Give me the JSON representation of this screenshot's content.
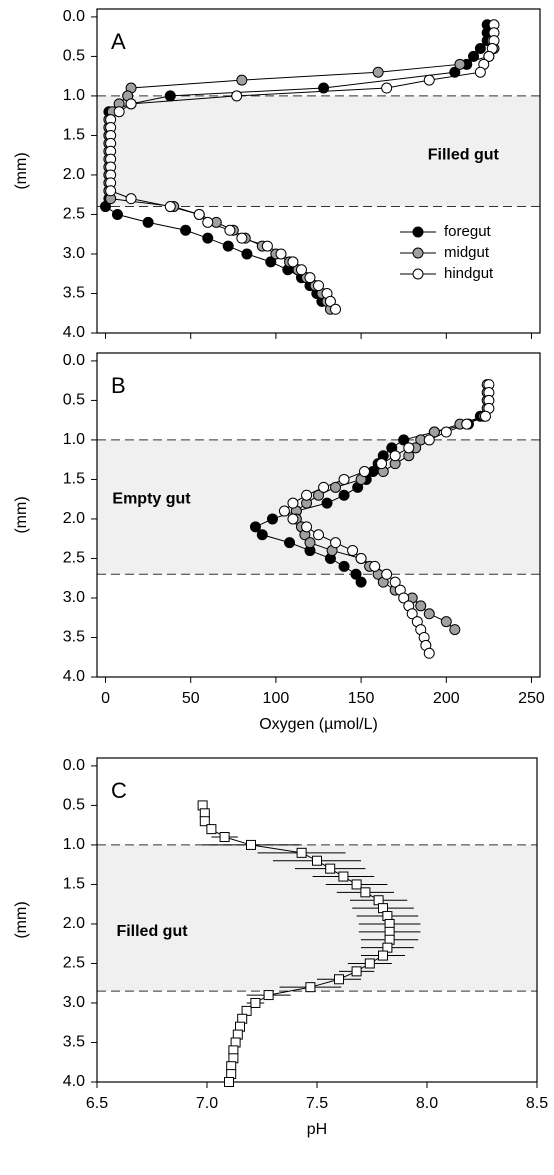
{
  "chart_data": [
    {
      "type": "line",
      "label": "A",
      "ylabel": "(mm)",
      "annotation": {
        "text": "Filled gut",
        "x": 210,
        "y": 1.75
      },
      "xlim": [
        -5,
        255
      ],
      "ylim": [
        4.0,
        -0.1
      ],
      "xticks": [
        0,
        50,
        100,
        150,
        200,
        250
      ],
      "show_xtick_labels": false,
      "yticks": [
        {
          "value": 0,
          "label": "0.0"
        },
        0.5,
        {
          "value": 1,
          "label": "1.0"
        },
        1.5,
        {
          "value": 2,
          "label": "2.0"
        },
        2.5,
        {
          "value": 3,
          "label": "3.0"
        },
        3.5,
        {
          "value": 4,
          "label": "4.0"
        }
      ],
      "shaded": [
        1.0,
        2.4
      ],
      "legend": "right",
      "series": [
        {
          "name": "foregut",
          "color": "#000000",
          "y": [
            0.1,
            0.2,
            0.3,
            0.4,
            0.5,
            0.6,
            0.7,
            0.9,
            1.0,
            1.1,
            1.2,
            1.3,
            1.4,
            1.5,
            1.6,
            1.7,
            1.8,
            1.9,
            2.0,
            2.1,
            2.2,
            2.3,
            2.4,
            2.5,
            2.6,
            2.7,
            2.8,
            2.9,
            3.0,
            3.1,
            3.2,
            3.3,
            3.4,
            3.5,
            3.6
          ],
          "x": [
            224,
            224,
            224,
            220,
            216,
            212,
            205,
            128,
            38,
            15,
            2,
            2,
            2,
            2,
            2,
            2,
            2,
            2,
            2,
            2,
            2,
            2,
            0,
            7,
            25,
            47,
            60,
            72,
            83,
            97,
            107,
            115,
            120,
            124,
            127
          ]
        },
        {
          "name": "midgut",
          "color": "#a0a0a0",
          "y": [
            0.3,
            0.4,
            0.5,
            0.6,
            0.7,
            0.8,
            0.9,
            1.0,
            1.1,
            1.2,
            1.3,
            1.4,
            1.5,
            1.6,
            1.7,
            1.8,
            1.9,
            2.0,
            2.1,
            2.2,
            2.3,
            2.4,
            2.5,
            2.6,
            2.7,
            2.8,
            2.9,
            3.0,
            3.1,
            3.2,
            3.3,
            3.4,
            3.5,
            3.6,
            3.7
          ],
          "x": [
            227,
            228,
            225,
            208,
            160,
            80,
            15,
            13,
            8,
            4,
            2,
            2,
            2,
            2,
            2,
            2,
            2,
            2,
            2,
            2,
            3,
            40,
            55,
            65,
            75,
            82,
            92,
            100,
            108,
            113,
            118,
            123,
            127,
            130,
            132
          ]
        },
        {
          "name": "hindgut",
          "color": "#ffffff",
          "y": [
            0.1,
            0.2,
            0.3,
            0.4,
            0.5,
            0.6,
            0.7,
            0.8,
            0.9,
            1.0,
            1.1,
            1.2,
            1.3,
            1.4,
            1.5,
            1.6,
            1.7,
            1.8,
            1.9,
            2.0,
            2.1,
            2.2,
            2.3,
            2.4,
            2.5,
            2.6,
            2.7,
            2.8,
            2.9,
            3.0,
            3.1,
            3.2,
            3.3,
            3.4,
            3.5,
            3.6,
            3.7
          ],
          "x": [
            228,
            228,
            228,
            227,
            225,
            222,
            220,
            190,
            165,
            77,
            15,
            8,
            3,
            3,
            3,
            3,
            3,
            3,
            3,
            3,
            3,
            3,
            15,
            38,
            55,
            60,
            73,
            80,
            95,
            103,
            110,
            115,
            120,
            125,
            130,
            132,
            135
          ]
        }
      ]
    },
    {
      "type": "line",
      "label": "B",
      "ylabel": "(mm)",
      "xlabel": "Oxygen (µmol/L)",
      "annotation": {
        "text": "Empty gut",
        "x": 27,
        "y": 1.75
      },
      "xlim": [
        -5,
        255
      ],
      "ylim": [
        4.0,
        -0.1
      ],
      "xticks": [
        0,
        50,
        100,
        150,
        200,
        250
      ],
      "yticks": [
        {
          "value": 0,
          "label": "0.0"
        },
        0.5,
        {
          "value": 1,
          "label": "1.0"
        },
        1.5,
        {
          "value": 2,
          "label": "2.0"
        },
        2.5,
        {
          "value": 3,
          "label": "3.0"
        },
        3.5,
        {
          "value": 4,
          "label": "4.0"
        }
      ],
      "shaded": [
        1.0,
        2.7
      ],
      "series": [
        {
          "name": "foregut",
          "color": "#000000",
          "y": [
            0.7,
            0.8,
            0.9,
            1.0,
            1.1,
            1.2,
            1.3,
            1.4,
            1.5,
            1.6,
            1.7,
            1.8,
            1.9,
            2.0,
            2.1,
            2.2,
            2.3,
            2.4,
            2.5,
            2.6,
            2.7,
            2.8
          ],
          "x": [
            220,
            213,
            193,
            175,
            168,
            163,
            160,
            157,
            153,
            148,
            140,
            130,
            112,
            98,
            88,
            92,
            108,
            120,
            132,
            140,
            147,
            150
          ]
        },
        {
          "name": "midgut",
          "color": "#a0a0a0",
          "y": [
            0.3,
            0.4,
            0.5,
            0.6,
            0.7,
            0.8,
            0.9,
            1.0,
            1.1,
            1.2,
            1.3,
            1.4,
            1.5,
            1.6,
            1.7,
            1.8,
            1.9,
            2.0,
            2.1,
            2.2,
            2.3,
            2.4,
            2.5,
            2.6,
            2.7,
            2.8,
            2.9,
            3.0,
            3.1,
            3.2,
            3.3,
            3.4
          ],
          "x": [
            224,
            224,
            224,
            224,
            222,
            208,
            193,
            185,
            182,
            178,
            170,
            163,
            150,
            135,
            125,
            118,
            112,
            112,
            115,
            117,
            120,
            133,
            150,
            155,
            160,
            163,
            170,
            180,
            185,
            190,
            200,
            205
          ]
        },
        {
          "name": "hindgut",
          "color": "#ffffff",
          "y": [
            0.3,
            0.4,
            0.5,
            0.6,
            0.7,
            0.8,
            0.9,
            1.0,
            1.1,
            1.2,
            1.3,
            1.4,
            1.5,
            1.6,
            1.7,
            1.8,
            1.9,
            2.0,
            2.1,
            2.2,
            2.3,
            2.4,
            2.5,
            2.6,
            2.7,
            2.8,
            2.9,
            3.0,
            3.1,
            3.2,
            3.3,
            3.4,
            3.5,
            3.6,
            3.7
          ],
          "x": [
            225,
            225,
            225,
            225,
            223,
            212,
            200,
            190,
            178,
            170,
            162,
            152,
            140,
            128,
            118,
            110,
            105,
            110,
            118,
            125,
            135,
            145,
            150,
            158,
            165,
            170,
            173,
            175,
            178,
            180,
            183,
            185,
            187,
            188,
            190
          ]
        }
      ]
    },
    {
      "type": "errorbar",
      "label": "C",
      "ylabel": "(mm)",
      "xlabel": "pH",
      "annotation": {
        "text": "Filled gut",
        "x": 6.75,
        "y": 2.1
      },
      "xlim": [
        6.5,
        8.5
      ],
      "ylim": [
        4.0,
        -0.1
      ],
      "xticks": [
        6.5,
        {
          "value": 7,
          "label": "7.0"
        },
        7.5,
        {
          "value": 8,
          "label": "8.0"
        },
        8.5
      ],
      "yticks": [
        {
          "value": 0,
          "label": "0.0"
        },
        0.5,
        {
          "value": 1,
          "label": "1.0"
        },
        1.5,
        {
          "value": 2,
          "label": "2.0"
        },
        2.5,
        {
          "value": 3,
          "label": "3.0"
        },
        3.5,
        {
          "value": 4,
          "label": "4.0"
        }
      ],
      "shaded": [
        1.0,
        2.85
      ],
      "series": [
        {
          "color": "#ffffff",
          "y": [
            0.5,
            0.6,
            0.7,
            0.8,
            0.9,
            1.0,
            1.1,
            1.2,
            1.3,
            1.4,
            1.5,
            1.6,
            1.7,
            1.8,
            1.9,
            2.0,
            2.1,
            2.2,
            2.3,
            2.4,
            2.5,
            2.6,
            2.7,
            2.8,
            2.9,
            3.0,
            3.1,
            3.2,
            3.3,
            3.4,
            3.5,
            3.6,
            3.7,
            3.8,
            3.9,
            4.0
          ],
          "x": [
            6.98,
            6.99,
            6.99,
            7.02,
            7.08,
            7.2,
            7.43,
            7.5,
            7.56,
            7.62,
            7.68,
            7.72,
            7.78,
            7.8,
            7.82,
            7.83,
            7.83,
            7.83,
            7.82,
            7.8,
            7.74,
            7.68,
            7.6,
            7.47,
            7.28,
            7.22,
            7.18,
            7.16,
            7.15,
            7.14,
            7.13,
            7.12,
            7.12,
            7.11,
            7.11,
            7.1
          ],
          "errors": [
            0.01,
            0.01,
            0.01,
            0.01,
            0.06,
            0.22,
            0.2,
            0.2,
            0.16,
            0.14,
            0.14,
            0.13,
            0.13,
            0.14,
            0.14,
            0.14,
            0.14,
            0.13,
            0.12,
            0.1,
            0.1,
            0.08,
            0.1,
            0.14,
            0.1,
            0.04,
            0.02,
            0.02,
            0.02,
            0.02,
            0.02,
            0.02,
            0.02,
            0.02,
            0.02,
            0.02
          ]
        }
      ]
    }
  ]
}
